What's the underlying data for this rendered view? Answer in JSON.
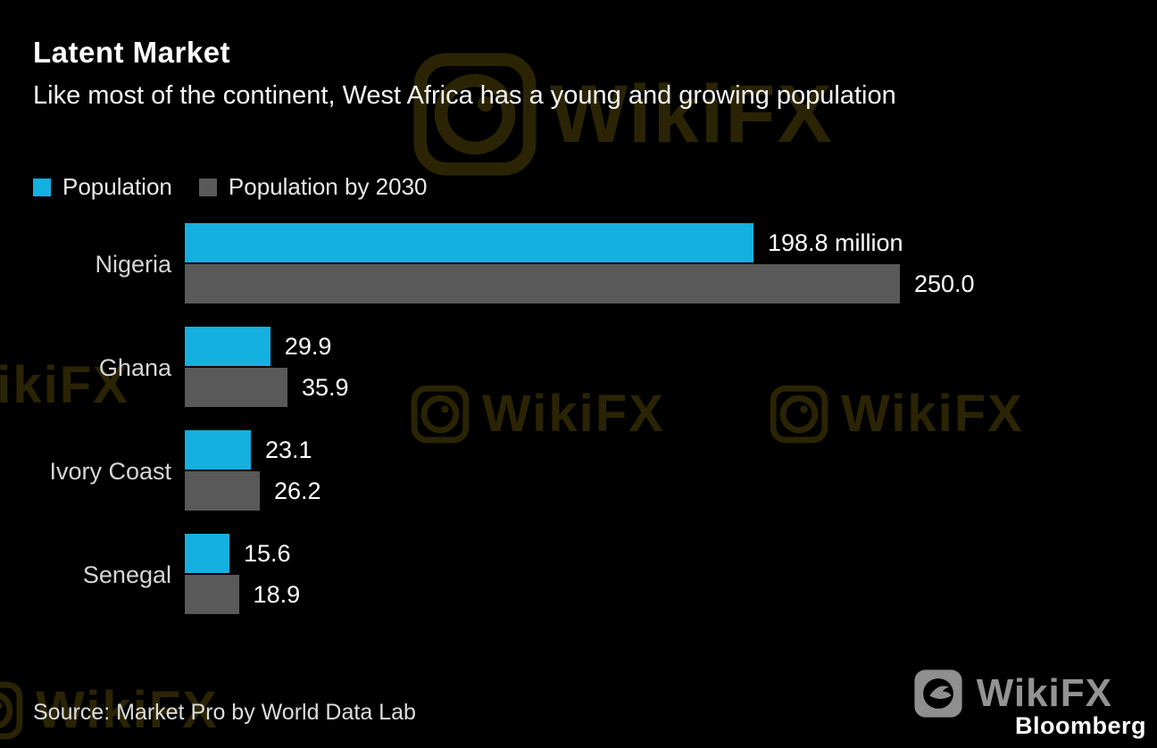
{
  "header": {
    "title": "Latent Market",
    "subtitle": "Like most of the continent, West Africa has a young and growing population"
  },
  "legend": [
    {
      "label": "Population",
      "color": "#14b1e0"
    },
    {
      "label": "Population by 2030",
      "color": "#595959"
    }
  ],
  "chart_data": {
    "type": "bar",
    "orientation": "horizontal",
    "title": "Latent Market",
    "subtitle": "Like most of the continent, West Africa has a young and growing population",
    "categories": [
      "Nigeria",
      "Ghana",
      "Ivory Coast",
      "Senegal"
    ],
    "series": [
      {
        "name": "Population",
        "color": "#14b1e0",
        "values": [
          198.8,
          29.9,
          23.1,
          15.6
        ],
        "labels": [
          "198.8 million",
          "29.9",
          "23.1",
          "15.6"
        ]
      },
      {
        "name": "Population by 2030",
        "color": "#595959",
        "values": [
          250.0,
          35.9,
          26.2,
          18.9
        ],
        "labels": [
          "250.0",
          "35.9",
          "26.2",
          "18.9"
        ]
      }
    ],
    "xlim": [
      0,
      250
    ],
    "unit": "million",
    "legend_position": "top",
    "grid": false
  },
  "footer": {
    "source": "Source: Market Pro by World Data Lab",
    "brand": "Bloomberg"
  },
  "watermark": {
    "text": "WikiFX"
  }
}
